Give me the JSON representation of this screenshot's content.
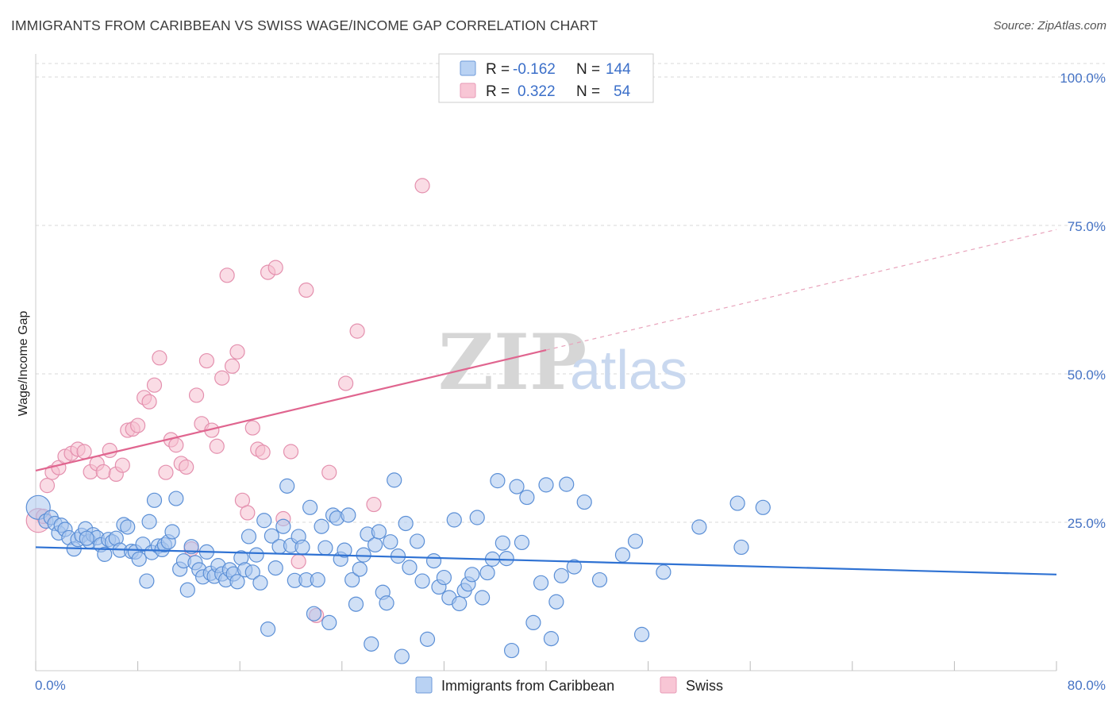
{
  "title": "IMMIGRANTS FROM CARIBBEAN VS SWISS WAGE/INCOME GAP CORRELATION CHART",
  "source": "Source: ZipAtlas.com",
  "colors": {
    "blue_fill": "#a9c6ee",
    "blue_stroke": "#5b8fd6",
    "blue_line": "#2f72d3",
    "pink_fill": "#f6bfd0",
    "pink_stroke": "#e490ae",
    "pink_line": "#e0658f",
    "axis_text": "#4472c4",
    "grid": "#d9d9d9"
  },
  "legend": {
    "rows": [
      {
        "r_label": "R =",
        "r_value": "-0.162",
        "n_label": "N =",
        "n_value": "144"
      },
      {
        "r_label": "R =",
        "r_value": "0.322",
        "n_label": "N =",
        "n_value": "54"
      }
    ]
  },
  "watermark": {
    "zip": "ZIP",
    "atlas": "atlas"
  },
  "chart_data": {
    "type": "scatter",
    "title": "IMMIGRANTS FROM CARIBBEAN VS SWISS WAGE/INCOME GAP CORRELATION CHART",
    "xlabel": "",
    "ylabel": "Wage/Income Gap",
    "xlim": [
      0,
      80
    ],
    "ylim": [
      0,
      100
    ],
    "x_tick_labels": [
      "0.0%",
      "80.0%"
    ],
    "y_tick_labels": [
      "100.0%",
      "75.0%",
      "50.0%",
      "25.0%"
    ],
    "y_ticks": [
      100,
      75,
      50,
      25
    ],
    "series": [
      {
        "name": "Immigrants from Caribbean",
        "color": "blue",
        "R": -0.162,
        "N": 144,
        "trend": {
          "x": [
            0,
            80
          ],
          "y": [
            20.8,
            16.2
          ]
        },
        "points": [
          [
            0.2,
            27.5
          ],
          [
            0.8,
            25.2
          ],
          [
            1.2,
            25.8
          ],
          [
            1.5,
            24.8
          ],
          [
            1.8,
            23.2
          ],
          [
            2.0,
            24.5
          ],
          [
            2.3,
            23.8
          ],
          [
            2.6,
            22.4
          ],
          [
            3.0,
            20.5
          ],
          [
            3.3,
            22.1
          ],
          [
            3.6,
            22.8
          ],
          [
            3.9,
            23.9
          ],
          [
            4.2,
            21.8
          ],
          [
            4.5,
            22.9
          ],
          [
            4.8,
            22.4
          ],
          [
            5.1,
            21.2
          ],
          [
            5.4,
            19.6
          ],
          [
            5.7,
            22.1
          ],
          [
            6.0,
            21.7
          ],
          [
            6.3,
            22.3
          ],
          [
            6.6,
            20.3
          ],
          [
            6.9,
            24.6
          ],
          [
            7.2,
            24.2
          ],
          [
            7.5,
            20.1
          ],
          [
            7.8,
            20.0
          ],
          [
            8.1,
            18.8
          ],
          [
            8.4,
            21.3
          ],
          [
            8.7,
            15.1
          ],
          [
            8.9,
            25.1
          ],
          [
            9.1,
            19.9
          ],
          [
            9.3,
            28.7
          ],
          [
            9.6,
            21.0
          ],
          [
            9.9,
            20.4
          ],
          [
            10.1,
            21.2
          ],
          [
            10.4,
            21.7
          ],
          [
            10.7,
            23.4
          ],
          [
            11.0,
            29.0
          ],
          [
            11.3,
            17.1
          ],
          [
            11.6,
            18.5
          ],
          [
            11.9,
            13.6
          ],
          [
            12.2,
            20.9
          ],
          [
            12.5,
            18.2
          ],
          [
            12.8,
            17.0
          ],
          [
            13.1,
            15.8
          ],
          [
            13.4,
            20.0
          ],
          [
            13.7,
            16.4
          ],
          [
            14.0,
            15.9
          ],
          [
            14.3,
            17.7
          ],
          [
            14.6,
            16.3
          ],
          [
            14.9,
            15.3
          ],
          [
            15.2,
            17.0
          ],
          [
            15.5,
            16.3
          ],
          [
            15.8,
            15.0
          ],
          [
            16.1,
            19.0
          ],
          [
            16.4,
            17.0
          ],
          [
            16.7,
            22.6
          ],
          [
            17.0,
            16.6
          ],
          [
            17.3,
            19.5
          ],
          [
            17.6,
            14.8
          ],
          [
            17.9,
            25.3
          ],
          [
            18.2,
            7.0
          ],
          [
            18.5,
            22.7
          ],
          [
            18.8,
            17.3
          ],
          [
            19.1,
            20.9
          ],
          [
            19.4,
            24.3
          ],
          [
            19.7,
            31.1
          ],
          [
            20.0,
            21.1
          ],
          [
            20.3,
            15.2
          ],
          [
            20.6,
            22.6
          ],
          [
            20.9,
            20.8
          ],
          [
            21.2,
            15.3
          ],
          [
            21.5,
            27.5
          ],
          [
            21.8,
            9.6
          ],
          [
            22.1,
            15.3
          ],
          [
            22.4,
            24.3
          ],
          [
            22.7,
            20.7
          ],
          [
            23.0,
            8.1
          ],
          [
            23.3,
            26.2
          ],
          [
            23.6,
            25.7
          ],
          [
            23.9,
            18.8
          ],
          [
            24.2,
            20.3
          ],
          [
            24.5,
            26.2
          ],
          [
            24.8,
            15.3
          ],
          [
            25.1,
            11.2
          ],
          [
            25.4,
            17.1
          ],
          [
            25.7,
            19.5
          ],
          [
            26.0,
            23.0
          ],
          [
            26.3,
            4.5
          ],
          [
            26.6,
            21.2
          ],
          [
            26.9,
            23.4
          ],
          [
            27.2,
            13.2
          ],
          [
            27.5,
            11.4
          ],
          [
            27.8,
            21.7
          ],
          [
            28.1,
            32.1
          ],
          [
            28.4,
            19.3
          ],
          [
            28.7,
            2.4
          ],
          [
            29.0,
            24.8
          ],
          [
            29.3,
            17.4
          ],
          [
            29.9,
            21.8
          ],
          [
            30.3,
            15.1
          ],
          [
            30.7,
            5.3
          ],
          [
            31.2,
            18.5
          ],
          [
            31.6,
            14.1
          ],
          [
            32.0,
            15.7
          ],
          [
            32.4,
            12.3
          ],
          [
            32.8,
            25.4
          ],
          [
            33.2,
            11.3
          ],
          [
            33.6,
            13.5
          ],
          [
            33.9,
            14.6
          ],
          [
            34.2,
            16.2
          ],
          [
            34.6,
            25.8
          ],
          [
            35.0,
            12.3
          ],
          [
            35.4,
            16.5
          ],
          [
            35.8,
            18.8
          ],
          [
            36.2,
            32.0
          ],
          [
            36.6,
            21.5
          ],
          [
            36.9,
            18.9
          ],
          [
            37.3,
            3.4
          ],
          [
            37.7,
            31.0
          ],
          [
            38.1,
            21.6
          ],
          [
            38.5,
            29.2
          ],
          [
            39.0,
            8.1
          ],
          [
            39.6,
            14.8
          ],
          [
            40.0,
            31.3
          ],
          [
            40.4,
            5.4
          ],
          [
            40.8,
            11.6
          ],
          [
            41.2,
            16.0
          ],
          [
            41.6,
            31.4
          ],
          [
            42.2,
            17.5
          ],
          [
            43.0,
            28.4
          ],
          [
            44.2,
            15.3
          ],
          [
            46.0,
            19.5
          ],
          [
            47.0,
            21.8
          ],
          [
            47.5,
            6.1
          ],
          [
            49.2,
            16.6
          ],
          [
            52.0,
            24.2
          ],
          [
            55.0,
            28.2
          ],
          [
            55.3,
            20.8
          ],
          [
            57.0,
            27.5
          ],
          [
            4.0,
            22.3
          ]
        ]
      },
      {
        "name": "Swiss",
        "color": "pink",
        "R": 0.322,
        "N": 54,
        "trend": {
          "x": [
            0,
            40
          ],
          "y": [
            33.7,
            54.0
          ]
        },
        "trend_dashed": {
          "x": [
            40,
            80
          ],
          "y": [
            54.0,
            74.3
          ]
        },
        "points": [
          [
            0.2,
            25.3
          ],
          [
            0.6,
            26.0
          ],
          [
            0.9,
            31.2
          ],
          [
            1.3,
            33.4
          ],
          [
            1.8,
            34.2
          ],
          [
            2.3,
            36.1
          ],
          [
            2.8,
            36.6
          ],
          [
            3.3,
            37.3
          ],
          [
            3.8,
            36.9
          ],
          [
            4.3,
            33.5
          ],
          [
            4.8,
            34.9
          ],
          [
            5.3,
            33.5
          ],
          [
            5.8,
            37.1
          ],
          [
            6.3,
            33.1
          ],
          [
            6.8,
            34.6
          ],
          [
            7.2,
            40.5
          ],
          [
            7.6,
            40.7
          ],
          [
            8.0,
            41.3
          ],
          [
            8.5,
            46.0
          ],
          [
            8.9,
            45.3
          ],
          [
            9.3,
            48.1
          ],
          [
            9.7,
            52.7
          ],
          [
            10.2,
            33.4
          ],
          [
            10.6,
            38.9
          ],
          [
            11.0,
            38.0
          ],
          [
            11.4,
            34.9
          ],
          [
            11.8,
            34.3
          ],
          [
            12.2,
            20.5
          ],
          [
            12.6,
            46.4
          ],
          [
            13.0,
            41.6
          ],
          [
            13.4,
            52.2
          ],
          [
            13.8,
            40.5
          ],
          [
            14.2,
            37.8
          ],
          [
            14.6,
            49.3
          ],
          [
            15.0,
            66.6
          ],
          [
            15.4,
            51.3
          ],
          [
            15.8,
            53.7
          ],
          [
            16.2,
            28.7
          ],
          [
            16.6,
            26.6
          ],
          [
            17.0,
            40.9
          ],
          [
            17.4,
            37.3
          ],
          [
            17.8,
            36.8
          ],
          [
            18.2,
            67.1
          ],
          [
            18.8,
            67.9
          ],
          [
            19.4,
            25.6
          ],
          [
            20.0,
            36.9
          ],
          [
            20.6,
            18.4
          ],
          [
            21.2,
            64.1
          ],
          [
            22.0,
            9.3
          ],
          [
            23.0,
            33.4
          ],
          [
            24.3,
            48.4
          ],
          [
            25.2,
            57.2
          ],
          [
            26.5,
            28.0
          ],
          [
            30.3,
            81.7
          ]
        ]
      }
    ]
  },
  "bottom_legend": [
    "Immigrants from Caribbean",
    "Swiss"
  ]
}
